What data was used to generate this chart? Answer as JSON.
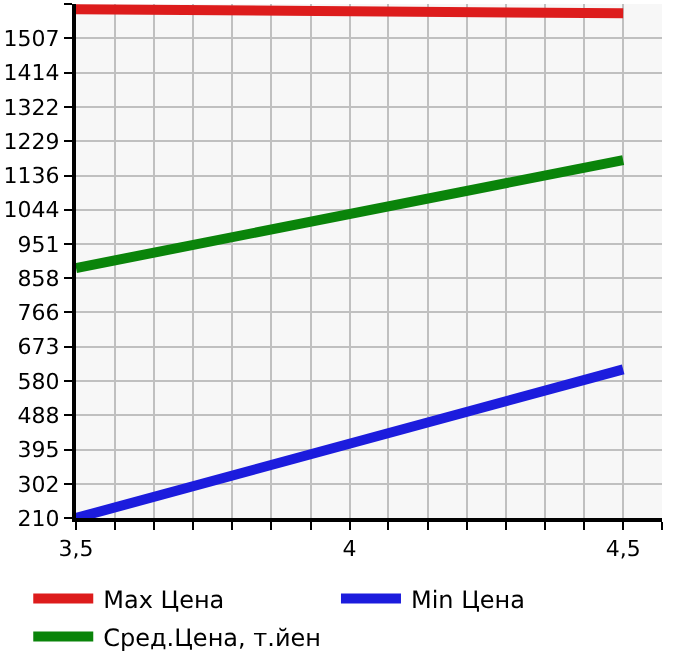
{
  "chart_data": {
    "type": "line",
    "x": [
      3.5,
      4.5
    ],
    "series": [
      {
        "name": "Max Цена",
        "color": "#dd1c1c",
        "values": [
          1586,
          1575
        ]
      },
      {
        "name": "Min Цена",
        "color": "#1c1cdd",
        "values": [
          210,
          612
        ]
      },
      {
        "name": "Сред.Цена, т.йен",
        "color": "#0a840a",
        "values": [
          886,
          1178
        ]
      }
    ],
    "xlim": [
      3.5,
      4.571
    ],
    "xticks": [
      {
        "value": 3.5,
        "label": "3,5"
      },
      {
        "value": 3.571,
        "label": null
      },
      {
        "value": 3.643,
        "label": null
      },
      {
        "value": 3.714,
        "label": null
      },
      {
        "value": 3.786,
        "label": null
      },
      {
        "value": 3.857,
        "label": null
      },
      {
        "value": 3.929,
        "label": null
      },
      {
        "value": 4,
        "label": "4"
      },
      {
        "value": 4.071,
        "label": null
      },
      {
        "value": 4.143,
        "label": null
      },
      {
        "value": 4.214,
        "label": null
      },
      {
        "value": 4.286,
        "label": null
      },
      {
        "value": 4.357,
        "label": null
      },
      {
        "value": 4.429,
        "label": null
      },
      {
        "value": 4.5,
        "label": "4,5"
      },
      {
        "value": 4.571,
        "label": null
      }
    ],
    "ylim": [
      210,
      1600
    ],
    "yticks": [
      210,
      302,
      395,
      488,
      580,
      673,
      766,
      858,
      951,
      1044,
      1136,
      1229,
      1322,
      1414,
      1507,
      {
        "value": 1600,
        "label": null
      }
    ],
    "grid": true,
    "legend": "bottom",
    "marker": "none",
    "line_style": "solid"
  }
}
